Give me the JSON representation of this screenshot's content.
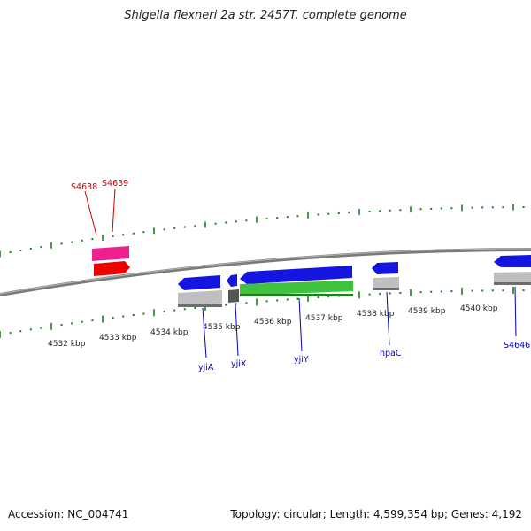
{
  "title": "Shigella flexneri 2a str. 2457T, complete genome",
  "footer": {
    "accession": "Accession: NC_004741",
    "summary": "Topology: circular; Length: 4,599,354 bp; Genes: 4,192"
  },
  "ruler_labels": [
    "4532 kbp",
    "4533 kbp",
    "4534 kbp",
    "4535 kbp",
    "4536 kbp",
    "4537 kbp",
    "4538 kbp",
    "4539 kbp",
    "4540 kbp"
  ],
  "genes": {
    "forward": [
      "S4638",
      "S4639"
    ],
    "reverse": [
      "yjiA",
      "yjiX",
      "yjiY",
      "hpaC",
      "S4646"
    ]
  },
  "colors": {
    "backbone": "#7a7a7a",
    "tick": "#1e7d1e",
    "forward_label": "#cc0000",
    "reverse_label": "#0000bb",
    "cds_blue": "#1515e0",
    "pink": "#ee1f8f",
    "red": "#ee0000",
    "green": "#3fc33f",
    "gray_box": "#bfbfbf"
  }
}
